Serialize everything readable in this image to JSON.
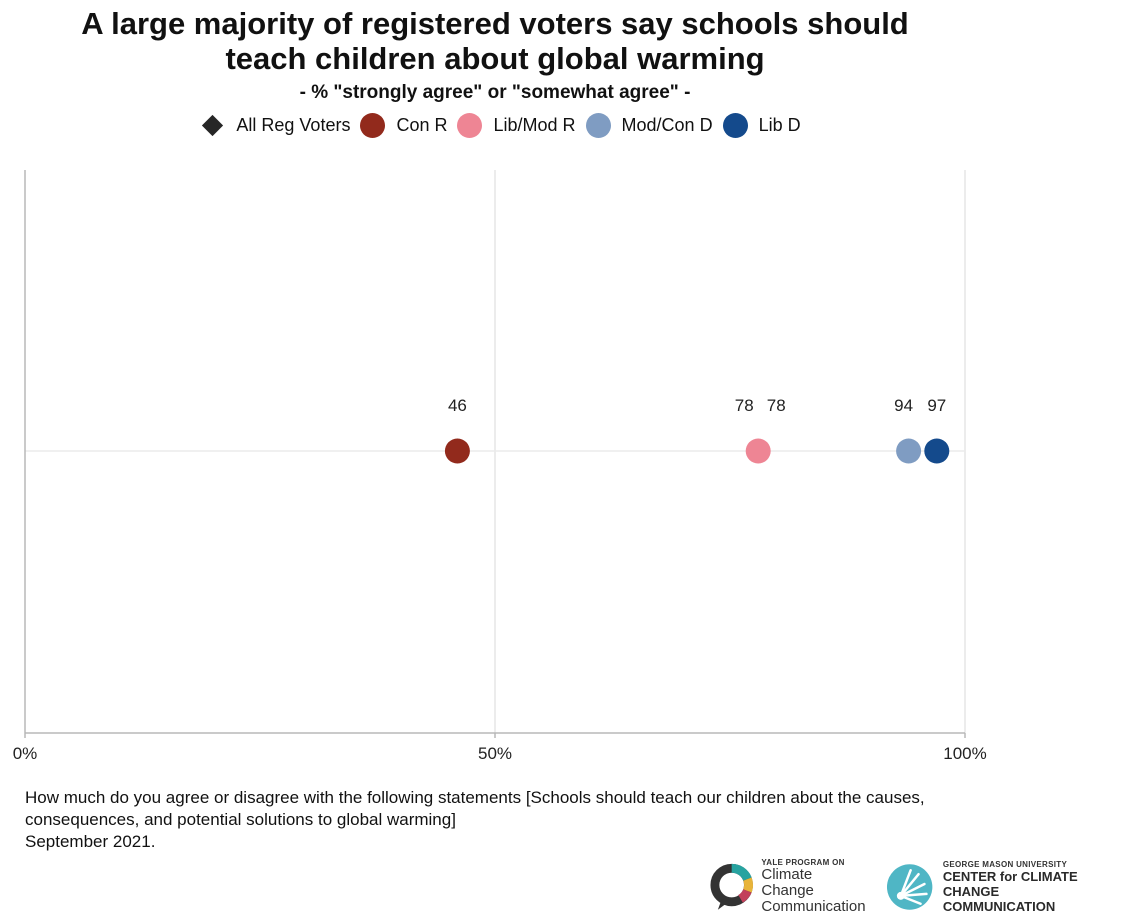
{
  "chart_data": {
    "type": "scatter",
    "title_line1": "A large majority of registered voters say schools should",
    "title_line2": "teach children about global warming",
    "subtitle": "- % \"strongly agree\" or \"somewhat agree\" -",
    "xlim": [
      0,
      100
    ],
    "x_ticks": [
      "0%",
      "50%",
      "100%"
    ],
    "x_tick_values": [
      0,
      50,
      100
    ],
    "grid": true,
    "legend_position": "top",
    "series": [
      {
        "name": "All Reg Voters",
        "value": 78,
        "label": "78",
        "color": "#262626",
        "shape": "diamond"
      },
      {
        "name": "Con R",
        "value": 46,
        "label": "46",
        "color": "#922a1c",
        "shape": "circle"
      },
      {
        "name": "Lib/Mod R",
        "value": 78,
        "label": "78",
        "color": "#ee8594",
        "shape": "circle"
      },
      {
        "name": "Mod/Con D",
        "value": 94,
        "label": "94",
        "color": "#7f9cc2",
        "shape": "circle"
      },
      {
        "name": "Lib D",
        "value": 97,
        "label": "97",
        "color": "#144a8c",
        "shape": "circle"
      }
    ]
  },
  "caption": {
    "line1": "How much do you agree or disagree with the following statements [Schools should teach our children about the causes,",
    "line2": "consequences, and potential solutions to global warming]",
    "line3": "September 2021."
  },
  "logos": {
    "yale": {
      "small": "YALE PROGRAM ON",
      "line1": "Climate Change",
      "line2": "Communication"
    },
    "gmu": {
      "small": "GEORGE MASON UNIVERSITY",
      "line1": "CENTER for CLIMATE CHANGE",
      "line2": "COMMUNICATION"
    }
  }
}
